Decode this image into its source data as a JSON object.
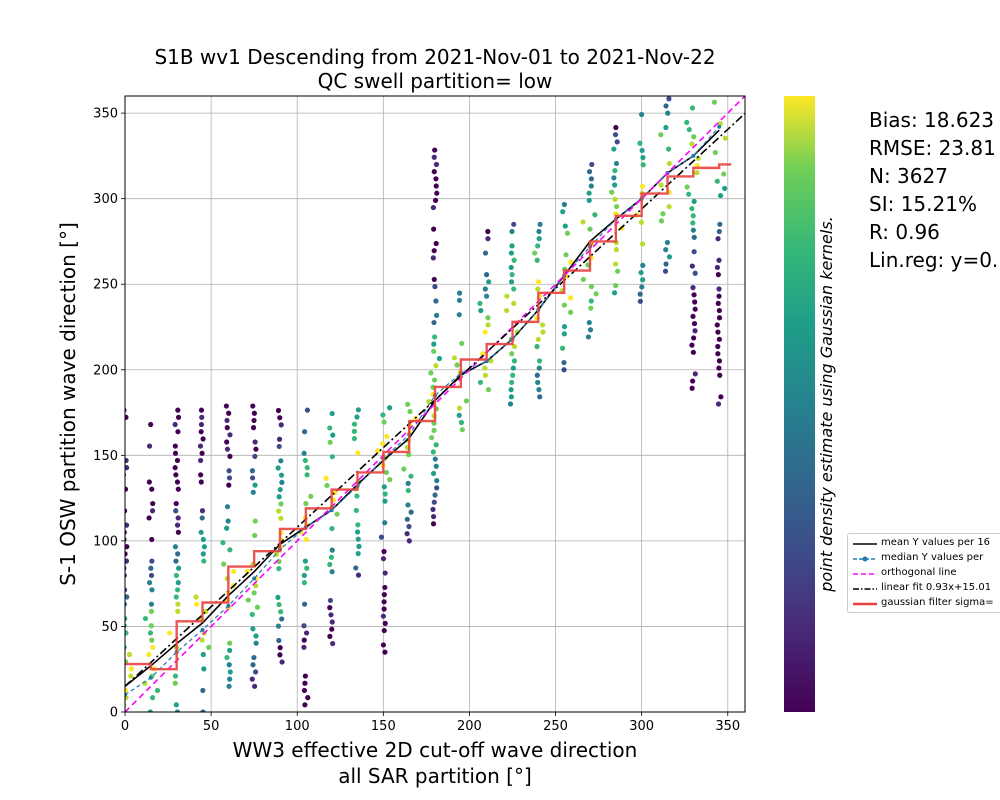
{
  "chart_data": {
    "type": "scatter",
    "title_line1": "S1B wv1 Descending from 2021-Nov-01 to 2021-Nov-22",
    "title_line2": "QC swell partition= low",
    "xlabel_line1": "WW3 effective 2D cut-off wave direction",
    "xlabel_line2": "all SAR partition [°]",
    "ylabel": "S-1 OSW partition wave direction [°]",
    "colorbar_label": "point density estimate using Gaussian kernels.",
    "xlim": [
      0,
      360
    ],
    "ylim": [
      0,
      360
    ],
    "x_ticks": [
      0,
      50,
      100,
      150,
      200,
      250,
      300,
      350
    ],
    "y_ticks": [
      0,
      50,
      100,
      150,
      200,
      250,
      300,
      350
    ],
    "grid": true,
    "colormap": "viridis",
    "scatter_columns": [
      {
        "x": 0,
        "ymin": 0,
        "ymax": 180
      },
      {
        "x": 15,
        "ymin": 0,
        "ymax": 170
      },
      {
        "x": 30,
        "ymin": 0,
        "ymax": 177
      },
      {
        "x": 45,
        "ymin": 0,
        "ymax": 180
      },
      {
        "x": 60,
        "ymin": 15,
        "ymax": 180
      },
      {
        "x": 75,
        "ymin": 15,
        "ymax": 180
      },
      {
        "x": 90,
        "ymin": 25,
        "ymax": 177
      },
      {
        "x": 105,
        "ymin": 0,
        "ymax": 180
      },
      {
        "x": 120,
        "ymin": 40,
        "ymax": 180
      },
      {
        "x": 135,
        "ymin": 80,
        "ymax": 180
      },
      {
        "x": 150,
        "ymin": 35,
        "ymax": 180
      },
      {
        "x": 165,
        "ymin": 100,
        "ymax": 180
      },
      {
        "x": 180,
        "ymin": 110,
        "ymax": 340
      },
      {
        "x": 195,
        "ymin": 165,
        "ymax": 245
      },
      {
        "x": 210,
        "ymin": 180,
        "ymax": 285
      },
      {
        "x": 225,
        "ymin": 180,
        "ymax": 285
      },
      {
        "x": 240,
        "ymin": 180,
        "ymax": 285
      },
      {
        "x": 255,
        "ymin": 200,
        "ymax": 300
      },
      {
        "x": 270,
        "ymin": 215,
        "ymax": 320
      },
      {
        "x": 285,
        "ymin": 245,
        "ymax": 345
      },
      {
        "x": 300,
        "ymin": 240,
        "ymax": 355
      },
      {
        "x": 315,
        "ymin": 245,
        "ymax": 360
      },
      {
        "x": 330,
        "ymin": 185,
        "ymax": 360
      },
      {
        "x": 345,
        "ymin": 180,
        "ymax": 360
      }
    ],
    "series": [
      {
        "name": "mean Y values per 16...",
        "color": "#000000",
        "style": "solid",
        "x": [
          0,
          15,
          30,
          45,
          60,
          75,
          90,
          105,
          120,
          135,
          150,
          165,
          180,
          195,
          210,
          225,
          240,
          255,
          270,
          285,
          300,
          315,
          330,
          345
        ],
        "y": [
          15,
          27,
          40,
          52,
          68,
          82,
          98,
          108,
          118,
          133,
          147,
          160,
          182,
          197,
          205,
          218,
          235,
          255,
          275,
          288,
          300,
          315,
          325,
          340
        ]
      },
      {
        "name": "median Y values per",
        "color": "#1f77b4",
        "style": "dashed-marker",
        "x": [
          0,
          15,
          30,
          45,
          60,
          75,
          90,
          105,
          120,
          135,
          150,
          165,
          180,
          195,
          210,
          225,
          240,
          255,
          270,
          285,
          300,
          315,
          330,
          345
        ],
        "y": [
          10,
          20,
          35,
          48,
          62,
          78,
          95,
          108,
          118,
          132,
          148,
          162,
          185,
          198,
          205,
          218,
          235,
          255,
          272,
          288,
          300,
          315,
          325,
          342
        ]
      },
      {
        "name": "orthogonal line",
        "color": "#ff00ff",
        "style": "dashed",
        "x": [
          0,
          360
        ],
        "y": [
          0,
          360
        ]
      },
      {
        "name": "linear fit 0.93x+15.0...",
        "color": "#000000",
        "style": "dashdot",
        "x": [
          0,
          360
        ],
        "y": [
          15.0,
          349.8
        ]
      },
      {
        "name": "gaussian filter sigma=...",
        "color": "#e8423f",
        "style": "step",
        "x": [
          0,
          15,
          30,
          45,
          60,
          75,
          90,
          105,
          120,
          135,
          150,
          165,
          180,
          195,
          210,
          225,
          240,
          255,
          270,
          285,
          300,
          315,
          330,
          345,
          352
        ],
        "y": [
          28,
          25,
          53,
          64,
          85,
          94,
          107,
          119,
          130,
          140,
          152,
          170,
          190,
          206,
          215,
          228,
          245,
          258,
          275,
          290,
          303,
          313,
          318,
          320,
          320
        ]
      }
    ]
  },
  "stats": [
    "Bias: 18.623",
    "RMSE: 23.81",
    "N: 3627",
    "SI: 15.21%",
    "R: 0.96",
    "Lin.reg: y=0."
  ],
  "legend": [
    "mean Y values per 16",
    "median Y values per",
    "orthogonal line",
    "linear fit 0.93x+15.01",
    "gaussian filter sigma="
  ]
}
